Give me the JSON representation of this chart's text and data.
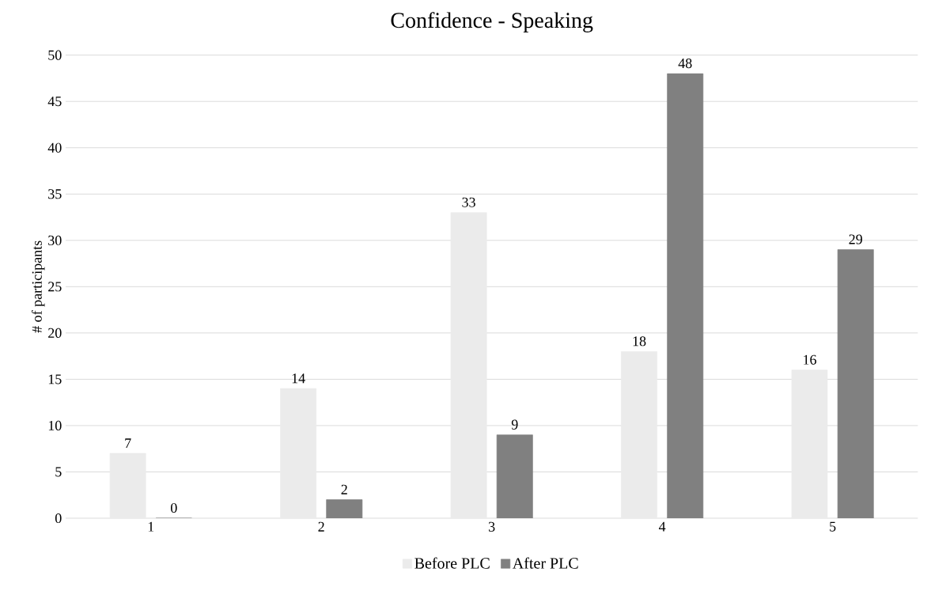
{
  "chart_data": {
    "type": "bar",
    "title": "Confidence - Speaking",
    "ylabel": "# of participants",
    "categories": [
      "1",
      "2",
      "3",
      "4",
      "5"
    ],
    "series": [
      {
        "name": "Before PLC",
        "color": "#ebebeb",
        "values": [
          7,
          14,
          33,
          18,
          16
        ]
      },
      {
        "name": "After PLC",
        "color": "#808080",
        "values": [
          0,
          2,
          9,
          48,
          29
        ]
      }
    ],
    "ylim": [
      0,
      50
    ],
    "yticks": [
      0,
      5,
      10,
      15,
      20,
      25,
      30,
      35,
      40,
      45,
      50
    ],
    "grid": "y",
    "legend": "bottom",
    "data_labels": true
  }
}
